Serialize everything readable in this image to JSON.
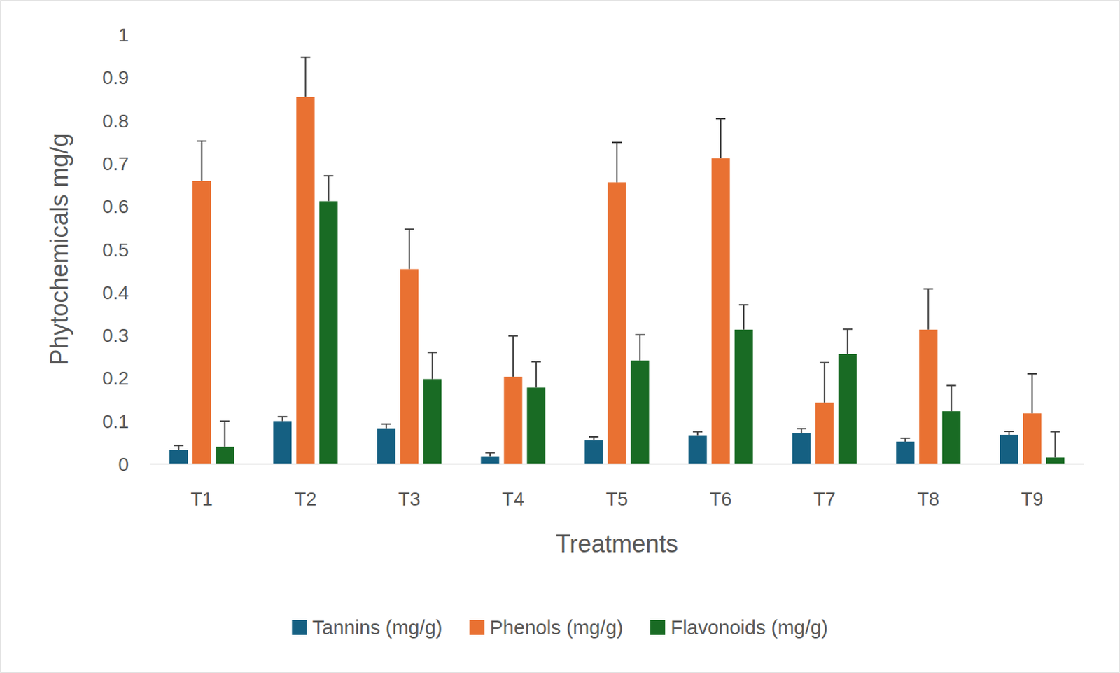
{
  "chart_data": {
    "type": "bar",
    "x_label": "Treatments",
    "y_label": "Phytochemicals mg/g",
    "categories": [
      "T1",
      "T2",
      "T3",
      "T4",
      "T5",
      "T6",
      "T7",
      "T8",
      "T9"
    ],
    "series": [
      {
        "name": "Tannins (mg/g)",
        "color": "#156082",
        "values": [
          0.033,
          0.1,
          0.083,
          0.018,
          0.055,
          0.067,
          0.072,
          0.052,
          0.068
        ],
        "errors": [
          0.01,
          0.01,
          0.01,
          0.008,
          0.008,
          0.008,
          0.01,
          0.008,
          0.008
        ]
      },
      {
        "name": "Phenols (mg/g)",
        "color": "#e97132",
        "values": [
          0.659,
          0.855,
          0.454,
          0.203,
          0.656,
          0.712,
          0.143,
          0.313,
          0.118
        ],
        "errors": [
          0.093,
          0.092,
          0.093,
          0.095,
          0.093,
          0.092,
          0.093,
          0.095,
          0.092
        ]
      },
      {
        "name": "Flavonoids (mg/g)",
        "color": "#196b24",
        "values": [
          0.04,
          0.612,
          0.198,
          0.178,
          0.241,
          0.313,
          0.256,
          0.123,
          0.015
        ],
        "errors": [
          0.06,
          0.059,
          0.062,
          0.06,
          0.06,
          0.058,
          0.058,
          0.06,
          0.06
        ]
      }
    ],
    "ylim": [
      0,
      1
    ],
    "yticks": [
      0,
      0.1,
      0.2,
      0.3,
      0.4,
      0.5,
      0.6,
      0.7,
      0.8,
      0.9,
      1
    ],
    "grid": false,
    "legend": "bottom"
  }
}
